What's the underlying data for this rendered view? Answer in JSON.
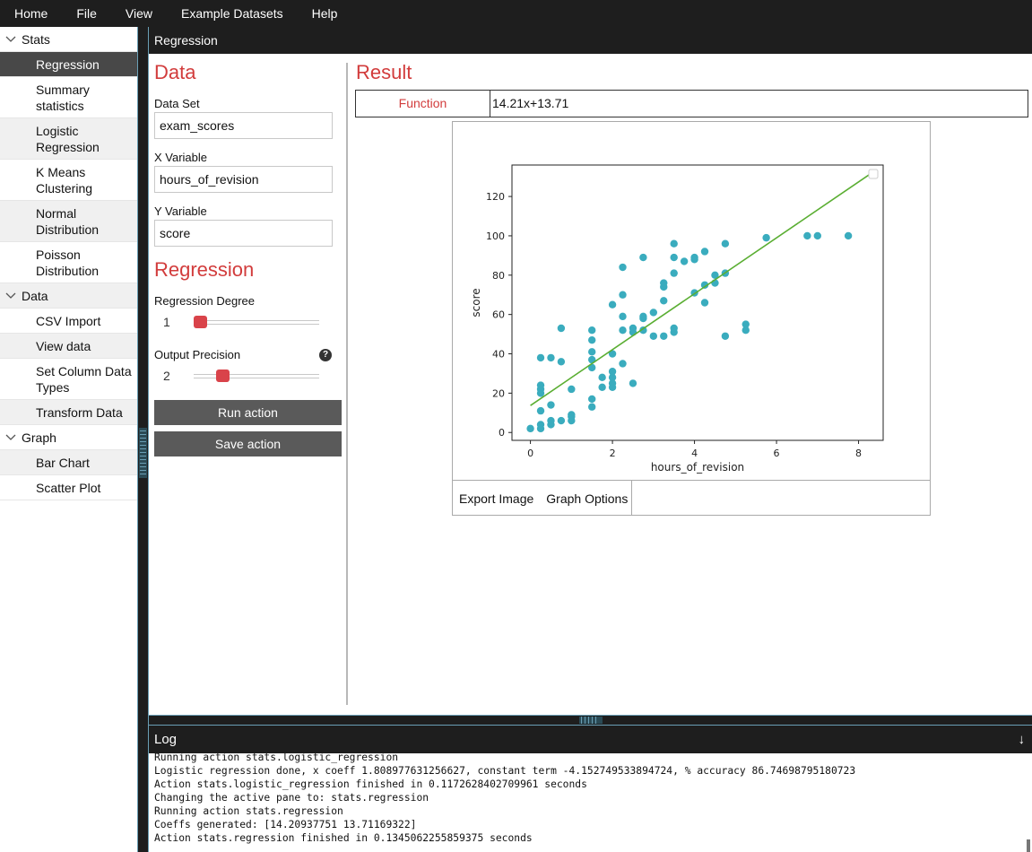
{
  "menu": [
    "Home",
    "File",
    "View",
    "Example Datasets",
    "Help"
  ],
  "sidebar": {
    "groups": [
      {
        "label": "Stats",
        "items": [
          {
            "label": "Regression",
            "selected": true
          },
          {
            "label": "Summary statistics"
          },
          {
            "label": "Logistic Regression"
          },
          {
            "label": "K Means Clustering"
          },
          {
            "label": "Normal Distribution"
          },
          {
            "label": "Poisson Distribution"
          }
        ]
      },
      {
        "label": "Data",
        "items": [
          {
            "label": "CSV Import"
          },
          {
            "label": "View data"
          },
          {
            "label": "Set Column Data Types"
          },
          {
            "label": "Transform Data"
          }
        ]
      },
      {
        "label": "Graph",
        "items": [
          {
            "label": "Bar Chart"
          },
          {
            "label": "Scatter Plot"
          }
        ]
      }
    ]
  },
  "pane": {
    "title": "Regression"
  },
  "data_section": {
    "title": "Data",
    "dataset_label": "Data Set",
    "dataset_value": "exam_scores",
    "x_label": "X Variable",
    "x_value": "hours_of_revision",
    "y_label": "Y Variable",
    "y_value": "score"
  },
  "regression_section": {
    "title": "Regression",
    "degree_label": "Regression Degree",
    "degree_value": "1",
    "degree_fraction": 0.0,
    "precision_label": "Output Precision",
    "precision_value": "2",
    "precision_fraction": 0.2,
    "help_icon": "?"
  },
  "buttons": {
    "run": "Run action",
    "save": "Save action"
  },
  "result": {
    "title": "Result",
    "function_label": "Function",
    "function_value": "14.21x+13.71"
  },
  "plot_toolbar": {
    "export": "Export Image",
    "options": "Graph Options"
  },
  "chart_data": {
    "type": "scatter",
    "xlabel": "hours_of_revision",
    "ylabel": "score",
    "xlim": [
      -0.45,
      8.6
    ],
    "ylim": [
      -4,
      136
    ],
    "xticks": [
      0,
      2,
      4,
      6,
      8
    ],
    "yticks": [
      0,
      20,
      40,
      60,
      80,
      100,
      120
    ],
    "point_color": "#3aacbe",
    "line_color": "#5aae32",
    "fit_line": {
      "slope": 14.21,
      "intercept": 13.71,
      "x_range": [
        0,
        8.25
      ]
    },
    "legend": "top-right (empty)",
    "points": [
      [
        0,
        2
      ],
      [
        0.25,
        2
      ],
      [
        0.25,
        4
      ],
      [
        0.25,
        11
      ],
      [
        0.25,
        20
      ],
      [
        0.25,
        22
      ],
      [
        0.25,
        24
      ],
      [
        0.25,
        38
      ],
      [
        0.5,
        4
      ],
      [
        0.5,
        6
      ],
      [
        0.5,
        14
      ],
      [
        0.5,
        38
      ],
      [
        0.75,
        6
      ],
      [
        0.75,
        36
      ],
      [
        0.75,
        53
      ],
      [
        1,
        6
      ],
      [
        1,
        8
      ],
      [
        1,
        9
      ],
      [
        1,
        22
      ],
      [
        1.5,
        13
      ],
      [
        1.5,
        17
      ],
      [
        1.5,
        33
      ],
      [
        1.5,
        37
      ],
      [
        1.5,
        41
      ],
      [
        1.5,
        47
      ],
      [
        1.5,
        52
      ],
      [
        1.75,
        23
      ],
      [
        1.75,
        28
      ],
      [
        2,
        23
      ],
      [
        2,
        25
      ],
      [
        2,
        28
      ],
      [
        2,
        31
      ],
      [
        2,
        40
      ],
      [
        2,
        65
      ],
      [
        2.25,
        35
      ],
      [
        2.25,
        52
      ],
      [
        2.25,
        59
      ],
      [
        2.25,
        70
      ],
      [
        2.25,
        84
      ],
      [
        2.5,
        25
      ],
      [
        2.5,
        51
      ],
      [
        2.5,
        53
      ],
      [
        2.75,
        52
      ],
      [
        2.75,
        58
      ],
      [
        2.75,
        59
      ],
      [
        2.75,
        89
      ],
      [
        3,
        49
      ],
      [
        3,
        61
      ],
      [
        3.25,
        49
      ],
      [
        3.25,
        67
      ],
      [
        3.25,
        74
      ],
      [
        3.25,
        76
      ],
      [
        3.5,
        51
      ],
      [
        3.5,
        53
      ],
      [
        3.5,
        81
      ],
      [
        3.5,
        89
      ],
      [
        3.5,
        96
      ],
      [
        3.75,
        87
      ],
      [
        4,
        71
      ],
      [
        4,
        88
      ],
      [
        4,
        89
      ],
      [
        4.25,
        66
      ],
      [
        4.25,
        75
      ],
      [
        4.25,
        92
      ],
      [
        4.5,
        76
      ],
      [
        4.5,
        80
      ],
      [
        4.75,
        49
      ],
      [
        4.75,
        81
      ],
      [
        4.75,
        96
      ],
      [
        5.25,
        52
      ],
      [
        5.25,
        55
      ],
      [
        5.75,
        99
      ],
      [
        6.75,
        100
      ],
      [
        7,
        100
      ],
      [
        7.75,
        100
      ]
    ]
  },
  "log": {
    "title": "Log",
    "arrow": "↓",
    "lines": [
      "Running action stats.logistic_regression",
      "Logistic regression done, x coeff 1.808977631256627, constant term -4.152749533894724, % accuracy 86.74698795180723",
      "Action stats.logistic_regression finished in 0.1172628402709961 seconds",
      "Changing the active pane to: stats.regression",
      "Running action stats.regression",
      "Coeffs generated: [14.20937751 13.71169322]",
      "Action stats.regression finished in 0.1345062255859375 seconds"
    ]
  }
}
